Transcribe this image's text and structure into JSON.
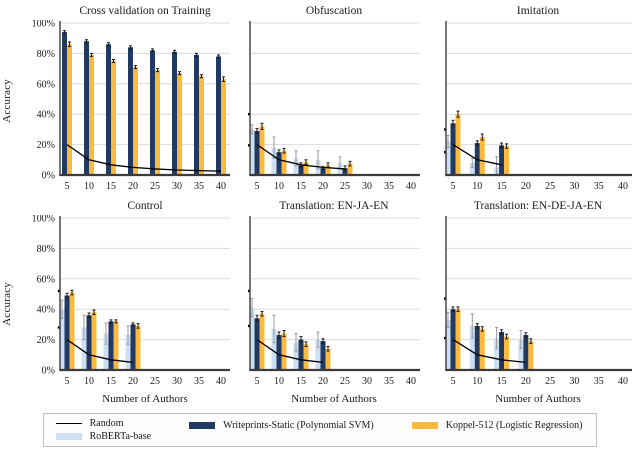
{
  "axes": {
    "ylabel": "Accuracy",
    "xlabel": "Number of Authors",
    "x_ticks": [
      "5",
      "10",
      "15",
      "20",
      "25",
      "30",
      "35",
      "40"
    ],
    "y_ticks": [
      "100%",
      "80%",
      "60%",
      "40%",
      "20%",
      "0%"
    ],
    "ylim": [
      0,
      100
    ],
    "grid": "horizontal"
  },
  "colors": {
    "roberta": "#CEDFF1",
    "writeprints": "#203A63",
    "koppel": "#FBB940",
    "random_line": "#000000",
    "grid": "#DCDCDC",
    "axis": "#3B3B3B",
    "error_dark": "#1A1A1A",
    "error_light": "#9A9A9A",
    "text": "#1A1A1A"
  },
  "legend": {
    "items": [
      {
        "label": "Random",
        "type": "line",
        "color": "#000000"
      },
      {
        "label": "RoBERTa-base",
        "type": "swatch",
        "color": "#CEDFF1"
      },
      {
        "label": "Writeprints-Static (Polynomial SVM)",
        "type": "swatch",
        "color": "#203A63"
      },
      {
        "label": "Koppel-512 (Logistic Regression)",
        "type": "swatch",
        "color": "#FBB940"
      }
    ]
  },
  "chart_data": [
    {
      "type": "bar",
      "title": "Cross validation on Training",
      "categories": [
        5,
        10,
        15,
        20,
        25,
        30,
        35,
        40
      ],
      "random": [
        20,
        10,
        6.7,
        5,
        4,
        3.3,
        2.9,
        2.5
      ],
      "series": [
        {
          "name": "Writeprints-Static (Polynomial SVM)",
          "color": "writeprints",
          "values": [
            94,
            88,
            86,
            84,
            82,
            81,
            79,
            78
          ],
          "errors": [
            1,
            1,
            1,
            1,
            1,
            1,
            1,
            1
          ]
        },
        {
          "name": "Koppel-512 (Logistic Regression)",
          "color": "koppel",
          "values": [
            86,
            79,
            75,
            71,
            69,
            67,
            65,
            63
          ],
          "errors": [
            1.5,
            1,
            1,
            1,
            1,
            1,
            1,
            1.5
          ]
        }
      ],
      "dots": []
    },
    {
      "type": "bar",
      "title": "Obfuscation",
      "categories": [
        5,
        10,
        15,
        20,
        25,
        30,
        35,
        40
      ],
      "random": [
        20,
        10,
        6.7,
        5,
        4
      ],
      "series": [
        {
          "name": "RoBERTa-base",
          "color": "roberta",
          "values": [
            30,
            18,
            11,
            10,
            8
          ],
          "errors": [
            3,
            7,
            5,
            6,
            4
          ]
        },
        {
          "name": "Writeprints-Static (Polynomial SVM)",
          "color": "writeprints",
          "values": [
            29,
            15,
            6.5,
            4.5,
            4.5
          ],
          "errors": [
            1.5,
            1.5,
            1.5,
            1,
            1.5
          ]
        },
        {
          "name": "Koppel-512 (Logistic Regression)",
          "color": "koppel",
          "values": [
            32,
            16,
            8.5,
            6.5,
            7.5
          ],
          "errors": [
            2,
            1.5,
            1.5,
            1.5,
            1.5
          ]
        }
      ],
      "dots": [
        {
          "i": 0,
          "v": 40,
          "dx": -8
        },
        {
          "i": 0,
          "v": 19.5,
          "dx": -8
        }
      ]
    },
    {
      "type": "bar",
      "title": "Imitation",
      "categories": [
        5,
        10,
        15,
        20,
        25,
        30,
        35,
        40
      ],
      "random": [
        20,
        10,
        6.7
      ],
      "series": [
        {
          "name": "RoBERTa-base",
          "color": "roberta",
          "values": [
            22,
            8,
            5
          ],
          "errors": [
            4,
            3,
            7
          ]
        },
        {
          "name": "Writeprints-Static (Polynomial SVM)",
          "color": "writeprints",
          "values": [
            34,
            21,
            19.5
          ],
          "errors": [
            2,
            1.5,
            1.5
          ]
        },
        {
          "name": "Koppel-512 (Logistic Regression)",
          "color": "koppel",
          "values": [
            40,
            25,
            19
          ],
          "errors": [
            2,
            2,
            1.5
          ]
        }
      ],
      "dots": [
        {
          "i": 0,
          "v": 30,
          "dx": -8
        },
        {
          "i": 0,
          "v": 15,
          "dx": -8
        }
      ]
    },
    {
      "type": "bar",
      "title": "Control",
      "categories": [
        5,
        10,
        15,
        20,
        25,
        30,
        35,
        40
      ],
      "random": [
        20,
        10,
        6.7,
        5
      ],
      "series": [
        {
          "name": "RoBERTa-base",
          "color": "roberta",
          "values": [
            40,
            28,
            24,
            23
          ],
          "errors": [
            6,
            8,
            7,
            6
          ]
        },
        {
          "name": "Writeprints-Static (Polynomial SVM)",
          "color": "writeprints",
          "values": [
            49,
            36,
            32,
            30
          ],
          "errors": [
            1.5,
            1.5,
            1,
            1
          ]
        },
        {
          "name": "Koppel-512 (Logistic Regression)",
          "color": "koppel",
          "values": [
            51,
            38,
            32,
            29
          ],
          "errors": [
            1.5,
            1.5,
            1,
            1.5
          ]
        }
      ],
      "dots": [
        {
          "i": 0,
          "v": 52,
          "dx": -8
        },
        {
          "i": 0,
          "v": 28,
          "dx": -8
        }
      ]
    },
    {
      "type": "bar",
      "title": "Translation: EN-JA-EN",
      "categories": [
        5,
        10,
        15,
        20,
        25,
        30,
        35,
        40
      ],
      "random": [
        20,
        10,
        6.7,
        5
      ],
      "series": [
        {
          "name": "RoBERTa-base",
          "color": "roberta",
          "values": [
            41,
            27,
            18,
            20
          ],
          "errors": [
            6,
            9,
            6,
            5
          ]
        },
        {
          "name": "Writeprints-Static (Polynomial SVM)",
          "color": "writeprints",
          "values": [
            34,
            23,
            20,
            19
          ],
          "errors": [
            2,
            2,
            2,
            1.5
          ]
        },
        {
          "name": "Koppel-512 (Logistic Regression)",
          "color": "koppel",
          "values": [
            37,
            24,
            17,
            14
          ],
          "errors": [
            1.5,
            2,
            1.5,
            1.5
          ]
        }
      ],
      "dots": [
        {
          "i": 0,
          "v": 52,
          "dx": -8
        },
        {
          "i": 0,
          "v": 29,
          "dx": -8
        }
      ]
    },
    {
      "type": "bar",
      "title": "Translation: EN-DE-JA-EN",
      "categories": [
        5,
        10,
        15,
        20,
        25,
        30,
        35,
        40
      ],
      "random": [
        20,
        10,
        6.7,
        5
      ],
      "series": [
        {
          "name": "RoBERTa-base",
          "color": "roberta",
          "values": [
            33,
            29,
            21,
            20
          ],
          "errors": [
            5,
            8,
            7,
            6
          ]
        },
        {
          "name": "Writeprints-Static (Polynomial SVM)",
          "color": "writeprints",
          "values": [
            40,
            29,
            25,
            23
          ],
          "errors": [
            1.5,
            1.5,
            1.5,
            1.5
          ]
        },
        {
          "name": "Koppel-512 (Logistic Regression)",
          "color": "koppel",
          "values": [
            40,
            27,
            22,
            19
          ],
          "errors": [
            1.5,
            1.5,
            1.5,
            1.5
          ]
        }
      ],
      "dots": [
        {
          "i": 0,
          "v": 47,
          "dx": -8
        },
        {
          "i": 0,
          "v": 21,
          "dx": -8
        }
      ]
    }
  ]
}
